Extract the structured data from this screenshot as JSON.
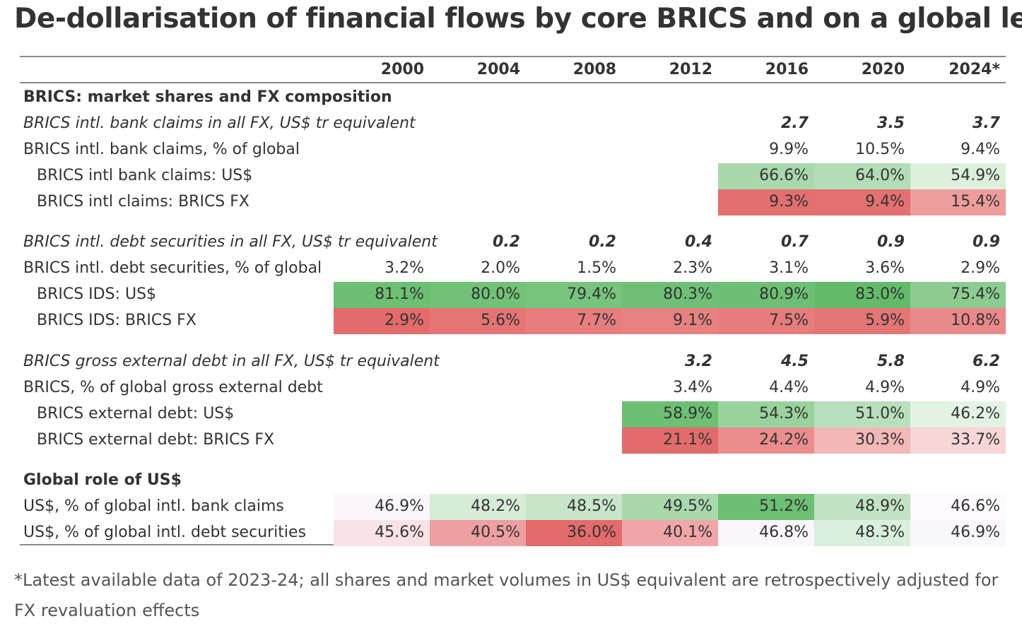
{
  "title": "De-dollarisation of financial flows by core BRICS and on a global level",
  "footnote": "*Latest available data of 2023-24; all shares and market volumes in US$ equivalent are retrospectively adjusted for FX revaluation effects",
  "chart_data": {
    "type": "table",
    "columns": [
      "2000",
      "2004",
      "2008",
      "2012",
      "2016",
      "2020",
      "2024*"
    ],
    "rows": [
      {
        "label": "BRICS: market shares and FX composition",
        "kind": "section",
        "values": [
          null,
          null,
          null,
          null,
          null,
          null,
          null
        ]
      },
      {
        "label": "BRICS intl. bank claims in all FX, US$ tr equivalent",
        "kind": "total",
        "values": [
          null,
          null,
          null,
          null,
          "2.7",
          "3.5",
          "3.7"
        ]
      },
      {
        "label": "BRICS intl. bank claims, % of global",
        "kind": "plain",
        "values": [
          null,
          null,
          null,
          null,
          "9.9%",
          "10.5%",
          "9.4%"
        ]
      },
      {
        "label": "BRICS intl bank claims: US$",
        "kind": "sub",
        "values": [
          null,
          null,
          null,
          null,
          "66.6%",
          "64.0%",
          "54.9%"
        ],
        "colors": [
          null,
          null,
          null,
          null,
          "#a8d8ac",
          "#b3ddb6",
          "#dcf0dc"
        ]
      },
      {
        "label": "BRICS intl claims: BRICS FX",
        "kind": "sub",
        "values": [
          null,
          null,
          null,
          null,
          "9.3%",
          "9.4%",
          "15.4%"
        ],
        "colors": [
          null,
          null,
          null,
          null,
          "#e46f6f",
          "#e47171",
          "#ee9d9d"
        ]
      },
      {
        "label": "BRICS intl. debt securities in all FX, US$ tr equivalent",
        "kind": "total",
        "values": [
          null,
          "0.2",
          "0.2",
          "0.4",
          "0.7",
          "0.9",
          "0.9"
        ]
      },
      {
        "label": "BRICS intl. debt securities, % of global",
        "kind": "plain",
        "values": [
          "3.2%",
          "2.0%",
          "1.5%",
          "2.3%",
          "3.1%",
          "3.6%",
          "2.9%"
        ]
      },
      {
        "label": "BRICS IDS: US$",
        "kind": "sub",
        "values": [
          "81.1%",
          "80.0%",
          "79.4%",
          "80.3%",
          "80.9%",
          "83.0%",
          "75.4%"
        ],
        "colors": [
          "#6cbf73",
          "#71c177",
          "#77c47d",
          "#6fc076",
          "#6cbf73",
          "#63bb6a",
          "#8ccc91"
        ]
      },
      {
        "label": "BRICS IDS: BRICS FX",
        "kind": "sub",
        "values": [
          "2.9%",
          "5.6%",
          "7.7%",
          "9.1%",
          "7.5%",
          "5.9%",
          "10.8%"
        ],
        "colors": [
          "#e46b6b",
          "#e57575",
          "#e77d7d",
          "#e88282",
          "#e77c7c",
          "#e57676",
          "#ea8989"
        ]
      },
      {
        "label": "BRICS gross external debt in all FX, US$ tr equivalent",
        "kind": "total",
        "values": [
          null,
          null,
          null,
          "3.2",
          "4.5",
          "5.8",
          "6.2"
        ]
      },
      {
        "label": "BRICS, % of global gross external debt",
        "kind": "plain",
        "values": [
          null,
          null,
          null,
          "3.4%",
          "4.4%",
          "4.9%",
          "4.9%"
        ]
      },
      {
        "label": "BRICS external debt: US$",
        "kind": "sub",
        "values": [
          null,
          null,
          null,
          "58.9%",
          "54.3%",
          "51.0%",
          "46.2%"
        ],
        "colors": [
          null,
          null,
          null,
          "#6cbf73",
          "#9ad29e",
          "#b8dfbb",
          "#e3f3e3"
        ]
      },
      {
        "label": "BRICS external debt: BRICS FX",
        "kind": "sub",
        "values": [
          null,
          null,
          null,
          "21.1%",
          "24.2%",
          "30.3%",
          "33.7%"
        ],
        "colors": [
          null,
          null,
          null,
          "#e46b6b",
          "#eb8d8d",
          "#f2b7b7",
          "#f7d6d6"
        ]
      },
      {
        "label": "Global role of US$",
        "kind": "section",
        "values": [
          null,
          null,
          null,
          null,
          null,
          null,
          null
        ]
      },
      {
        "label": "US$, % of global intl. bank claims",
        "kind": "plain",
        "values": [
          "46.9%",
          "48.2%",
          "48.5%",
          "49.5%",
          "51.2%",
          "48.9%",
          "46.6%"
        ],
        "colors": [
          "#faf7fb",
          "#d6ecd7",
          "#c8e6ca",
          "#a9d8ad",
          "#6cbf73",
          "#c1e3c3",
          "#fdfafd"
        ]
      },
      {
        "label": "US$, % of global intl. debt securities",
        "kind": "plain",
        "values": [
          "45.6%",
          "40.5%",
          "36.0%",
          "40.1%",
          "46.8%",
          "48.3%",
          "46.9%"
        ],
        "colors": [
          "#f8e2e5",
          "#ee9fa2",
          "#e46b6b",
          "#f0a6a8",
          "#faf7fb",
          "#d9eedb",
          "#f8f7fb"
        ]
      }
    ]
  }
}
